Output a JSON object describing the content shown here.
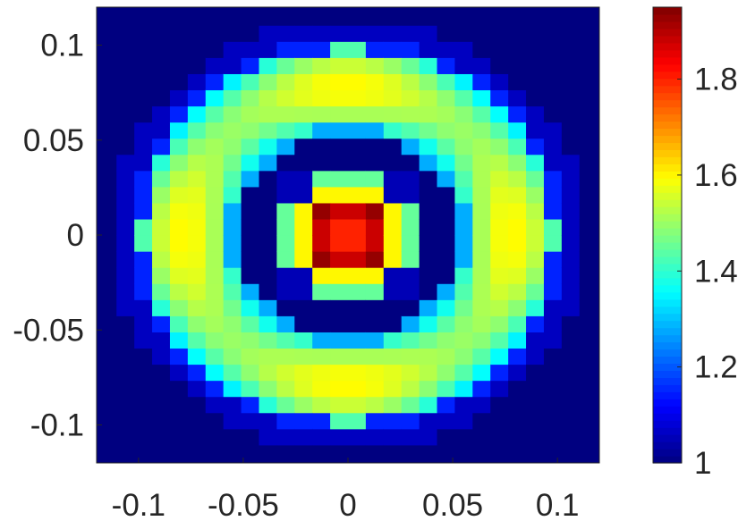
{
  "chart_data": {
    "type": "heatmap",
    "title": "",
    "xlabel": "",
    "ylabel": "",
    "xlim": [
      -0.12,
      0.12
    ],
    "ylim": [
      -0.12,
      0.12
    ],
    "grid_size": [
      28,
      28
    ],
    "cell_size": 0.0085,
    "colormap": "jet",
    "clim": [
      1.0,
      1.95
    ],
    "x_ticks": [
      {
        "value": -0.1,
        "label": "-0.1"
      },
      {
        "value": -0.05,
        "label": "-0.05"
      },
      {
        "value": 0,
        "label": "0"
      },
      {
        "value": 0.05,
        "label": "0.05"
      },
      {
        "value": 0.1,
        "label": "0.1"
      }
    ],
    "y_ticks": [
      {
        "value": 0.1,
        "label": "0.1"
      },
      {
        "value": 0.05,
        "label": "0.05"
      },
      {
        "value": 0,
        "label": "0"
      },
      {
        "value": -0.05,
        "label": "-0.05"
      },
      {
        "value": -0.1,
        "label": "-0.1"
      }
    ],
    "colorbar_ticks": [
      {
        "value": 1.0,
        "label": "1"
      },
      {
        "value": 1.2,
        "label": "1.2"
      },
      {
        "value": 1.4,
        "label": "1.4"
      },
      {
        "value": 1.6,
        "label": "1.6"
      },
      {
        "value": 1.8,
        "label": "1.8"
      }
    ],
    "pattern": {
      "background": 1.0,
      "ring": {
        "inner_radius": 0.058,
        "outer_radius": 0.098,
        "peak": 1.55,
        "edge": 1.38
      },
      "center_square": {
        "half_width": 0.02,
        "core_value": 1.8,
        "corner_value": 1.93,
        "edge_value": 1.6,
        "halo_value": 1.25
      }
    }
  }
}
